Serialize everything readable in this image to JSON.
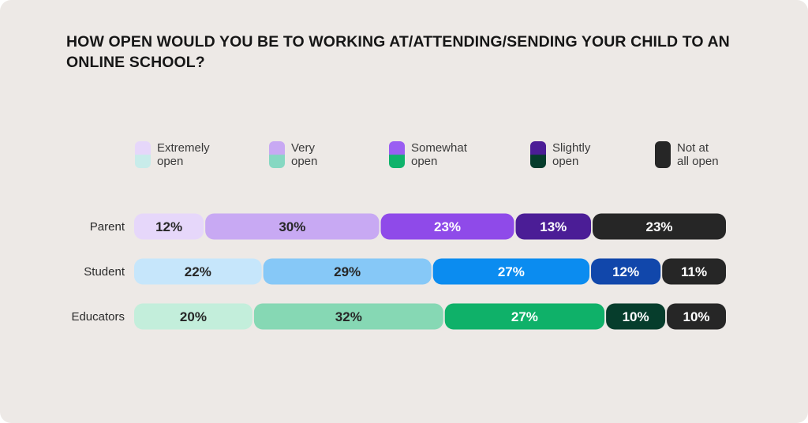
{
  "chart_data": {
    "type": "bar",
    "orientation": "horizontal",
    "stacked": true,
    "normalized": true,
    "title": "HOW OPEN WOULD YOU BE TO WORKING AT/ATTENDING/SENDING YOUR CHILD TO AN ONLINE SCHOOL?",
    "categories": [
      "Parent",
      "Student",
      "Educators"
    ],
    "legend_position": "top",
    "legend": [
      {
        "label": "Extremely\nopen",
        "colors": [
          "#e6d7fa",
          "#c8ecea"
        ]
      },
      {
        "label": "Very\nopen",
        "colors": [
          "#c8a9f3",
          "#86d8c2"
        ]
      },
      {
        "label": "Somewhat\nopen",
        "colors": [
          "#9a5ef2",
          "#0fb36b"
        ]
      },
      {
        "label": "Slightly\nopen",
        "colors": [
          "#4b1d96",
          "#063d2c"
        ]
      },
      {
        "label": "Not at\nall open",
        "colors": [
          "#262626",
          "#262626"
        ]
      }
    ],
    "series": [
      {
        "name": "Extremely open",
        "values": [
          12,
          22,
          20
        ]
      },
      {
        "name": "Very open",
        "values": [
          30,
          29,
          32
        ]
      },
      {
        "name": "Somewhat open",
        "values": [
          23,
          27,
          27
        ]
      },
      {
        "name": "Slightly open",
        "values": [
          13,
          12,
          10
        ]
      },
      {
        "name": "Not at all open",
        "values": [
          23,
          11,
          10
        ]
      }
    ],
    "data_labels": [
      [
        "12%",
        "30%",
        "23%",
        "13%",
        "23%"
      ],
      [
        "22%",
        "29%",
        "27%",
        "12%",
        "11%"
      ],
      [
        "20%",
        "32%",
        "27%",
        "10%",
        "10%"
      ]
    ],
    "colors": [
      [
        "#e6d7fa",
        "#c8a9f3",
        "#8f4ae9",
        "#4b1d96",
        "#262626"
      ],
      [
        "#c6e6fb",
        "#86c8f7",
        "#0b8cf0",
        "#1147ab",
        "#262626"
      ],
      [
        "#c3eedb",
        "#86d8b4",
        "#0fb169",
        "#063d2c",
        "#262626"
      ]
    ],
    "label_colors": [
      [
        "#262626",
        "#262626",
        "#ffffff",
        "#ffffff",
        "#ffffff"
      ],
      [
        "#262626",
        "#262626",
        "#ffffff",
        "#ffffff",
        "#ffffff"
      ],
      [
        "#262626",
        "#262626",
        "#ffffff",
        "#ffffff",
        "#ffffff"
      ]
    ]
  }
}
